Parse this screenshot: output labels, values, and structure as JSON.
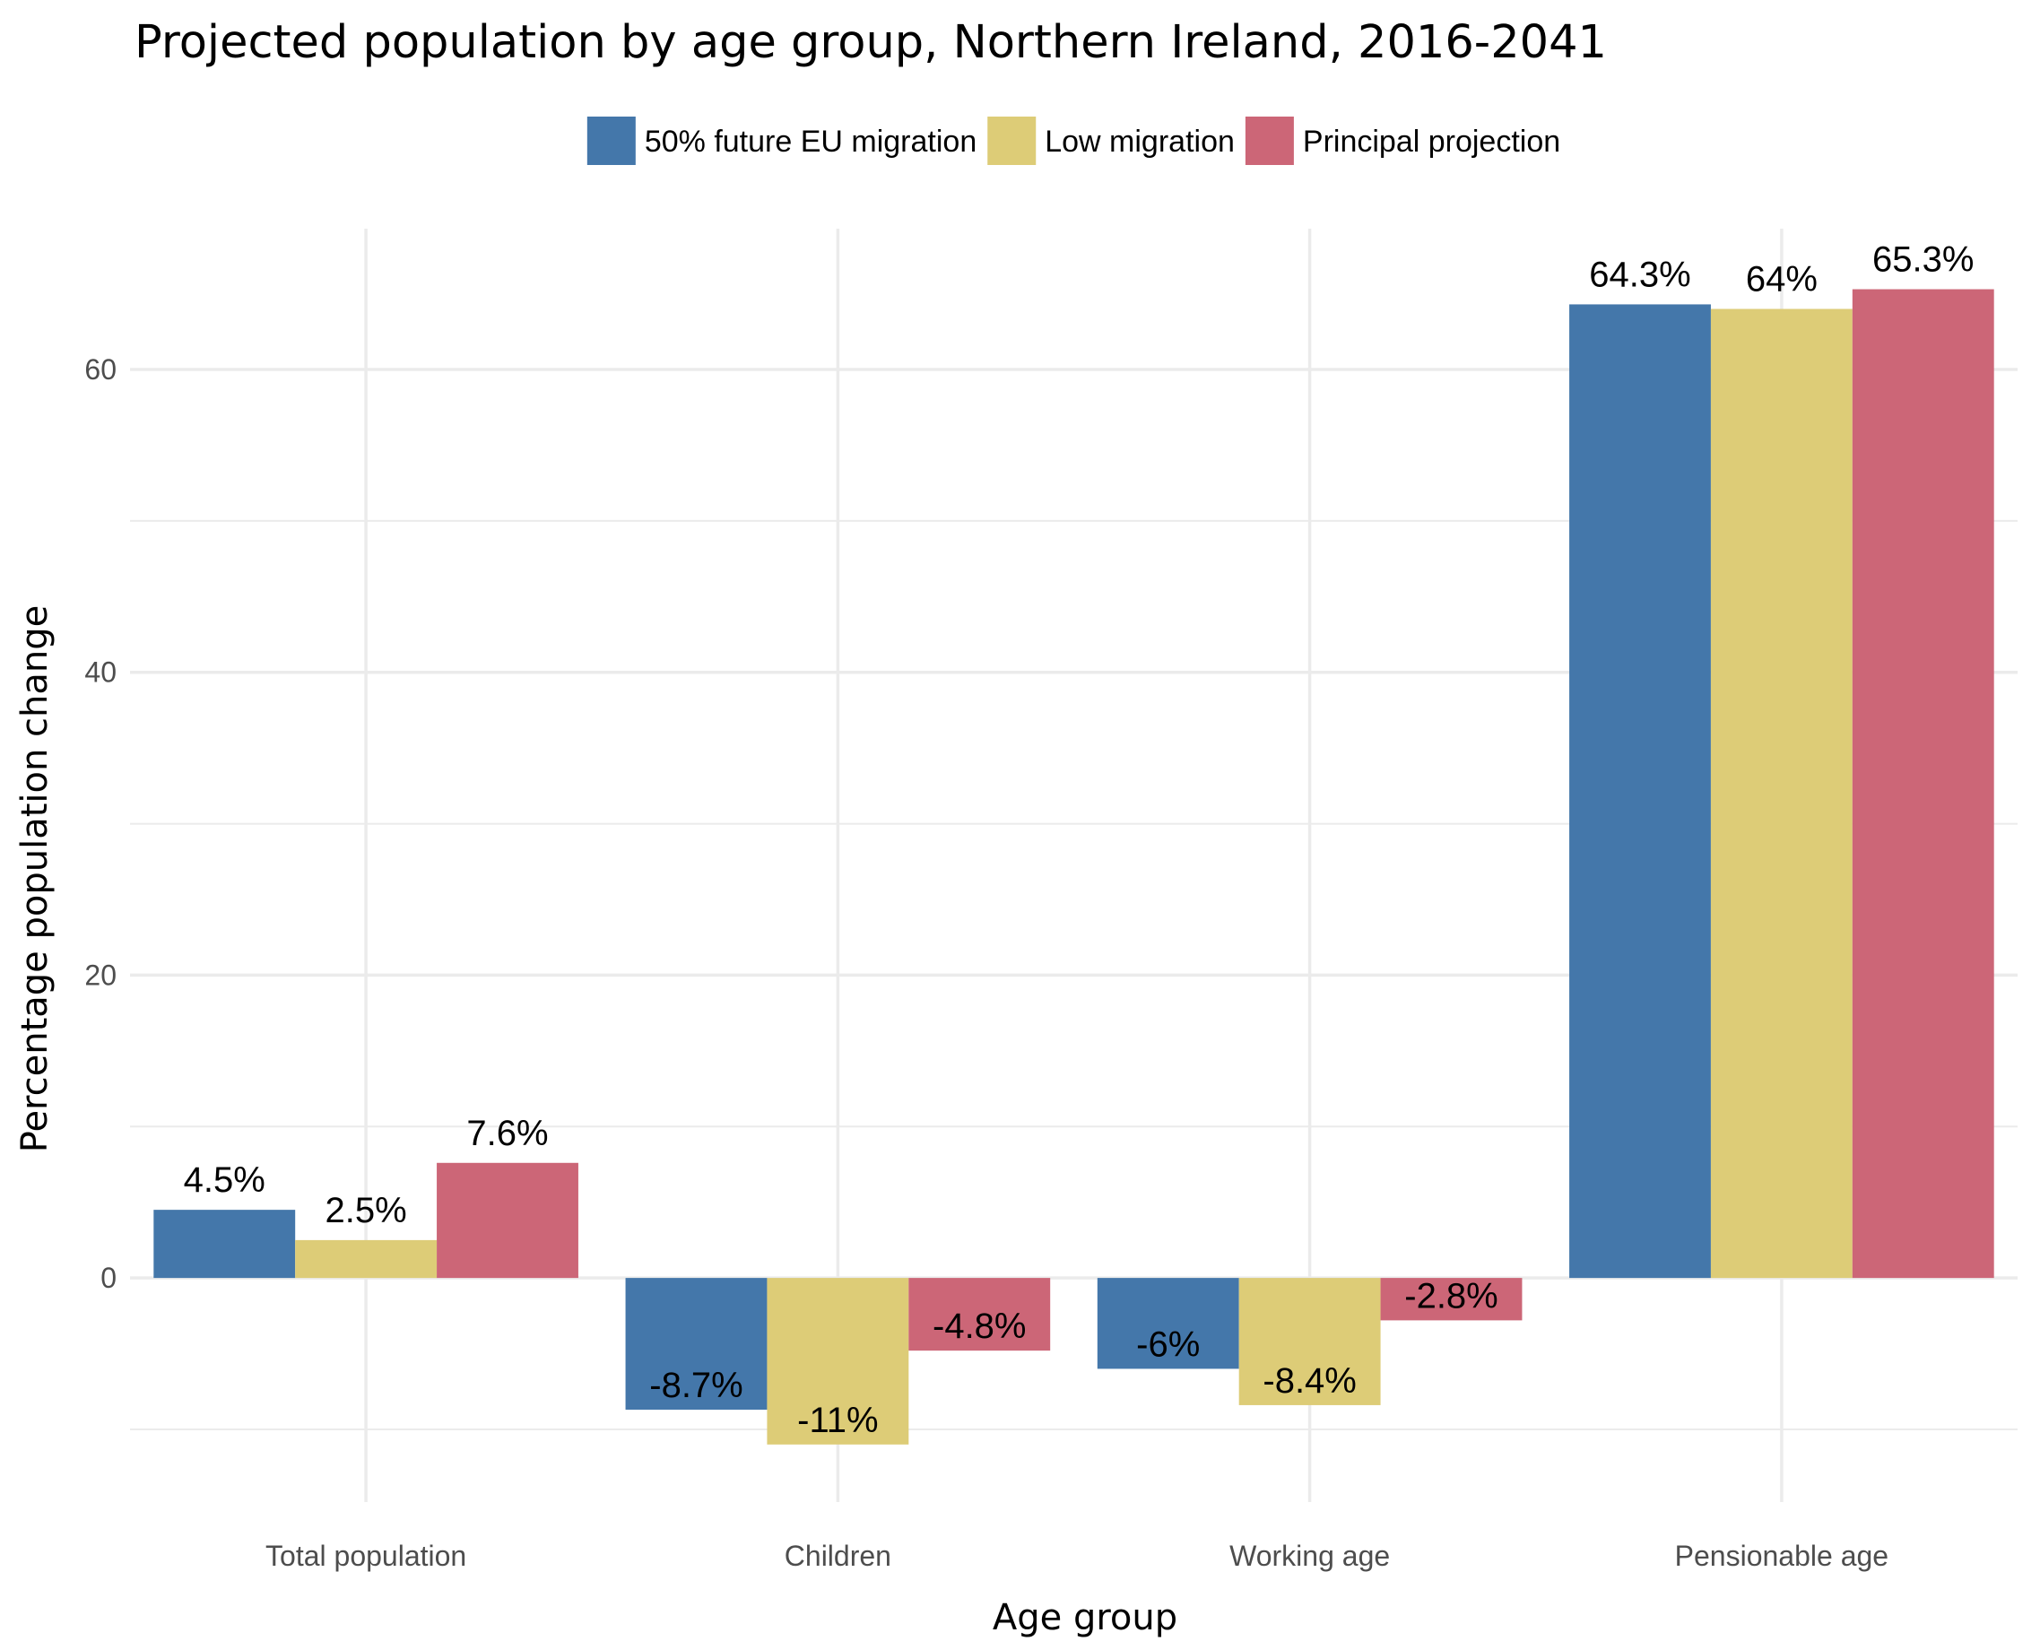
{
  "chart_data": {
    "type": "bar",
    "title": "Projected population by age group, Northern Ireland, 2016-2041",
    "xlabel": "Age group",
    "ylabel": "Percentage population change",
    "categories": [
      "Total population",
      "Children",
      "Working age",
      "Pensionable age"
    ],
    "series": [
      {
        "name": "50% future EU migration",
        "color": "#4477aa",
        "values": [
          4.5,
          -8.7,
          -6,
          64.3
        ],
        "labels": [
          "4.5%",
          "-8.7%",
          "-6%",
          "64.3%"
        ]
      },
      {
        "name": "Low migration",
        "color": "#ddcc77",
        "values": [
          2.5,
          -11,
          -8.4,
          64
        ],
        "labels": [
          "2.5%",
          "-11%",
          "-8.4%",
          "64%"
        ]
      },
      {
        "name": "Principal projection",
        "color": "#cc6677",
        "values": [
          7.6,
          -4.8,
          -2.8,
          65.3
        ],
        "labels": [
          "7.6%",
          "-4.8%",
          "-2.8%",
          "65.3%"
        ]
      }
    ],
    "yticks": [
      0,
      20,
      40,
      60
    ],
    "ylim": [
      -14.8,
      69.3
    ],
    "grid": true,
    "legend_position": "top"
  }
}
